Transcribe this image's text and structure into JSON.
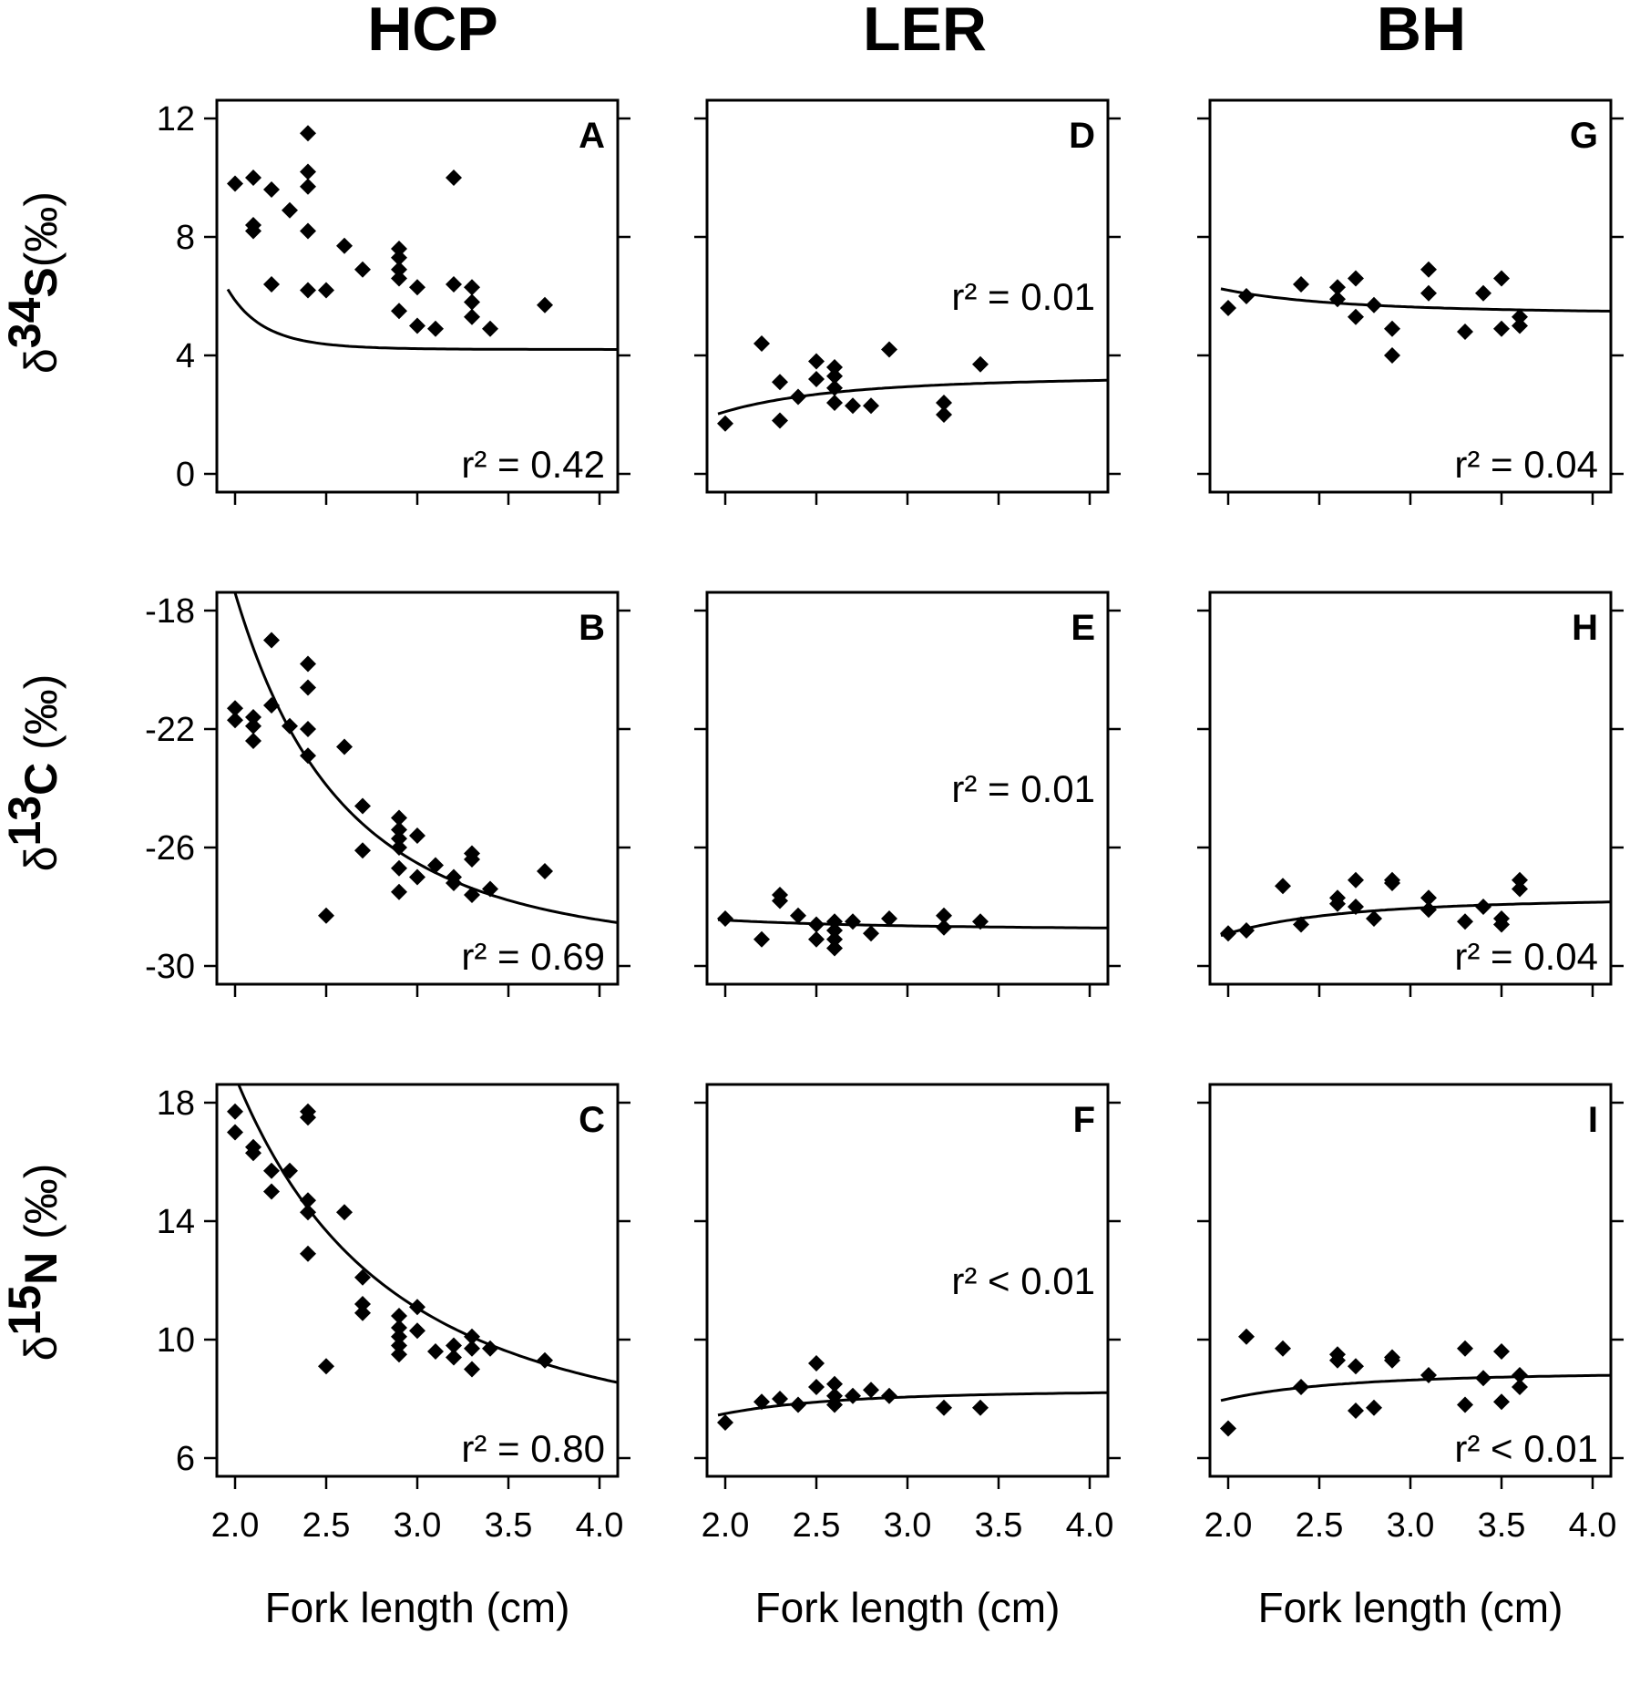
{
  "columns": [
    "HCP",
    "LER",
    "BH"
  ],
  "row_labels": [
    {
      "delta": "δ",
      "sup": "34",
      "elem": "S",
      "unit": "(‰)"
    },
    {
      "delta": "δ",
      "sup": "13",
      "elem": "C",
      "unit": " (‰)"
    },
    {
      "delta": "δ",
      "sup": "15",
      "elem": "N",
      "unit": " (‰)"
    }
  ],
  "chart_data": [
    {
      "type": "scatter",
      "panel": "A",
      "r2": "r² = 0.42",
      "ylim": [
        0,
        12
      ],
      "xlim": [
        2.0,
        4.0
      ],
      "yticks": [
        "0",
        "4",
        "8",
        "12"
      ],
      "xticks": [
        "2.0",
        "2.5",
        "3.0",
        "3.5",
        "4.0"
      ],
      "xlabel": "Fork length (cm)",
      "points": [
        [
          2.0,
          9.8
        ],
        [
          2.1,
          10.0
        ],
        [
          2.1,
          8.2
        ],
        [
          2.1,
          8.4
        ],
        [
          2.2,
          9.6
        ],
        [
          2.2,
          6.4
        ],
        [
          2.3,
          8.9
        ],
        [
          2.4,
          11.5
        ],
        [
          2.4,
          10.2
        ],
        [
          2.4,
          9.7
        ],
        [
          2.4,
          8.2
        ],
        [
          2.4,
          6.2
        ],
        [
          2.5,
          6.2
        ],
        [
          2.6,
          7.7
        ],
        [
          2.7,
          6.9
        ],
        [
          2.9,
          7.6
        ],
        [
          2.9,
          7.3
        ],
        [
          2.9,
          6.9
        ],
        [
          2.9,
          6.6
        ],
        [
          2.9,
          5.5
        ],
        [
          3.0,
          6.3
        ],
        [
          3.0,
          5.0
        ],
        [
          3.1,
          4.9
        ],
        [
          3.2,
          10.0
        ],
        [
          3.2,
          6.4
        ],
        [
          3.3,
          6.3
        ],
        [
          3.3,
          5.8
        ],
        [
          3.3,
          5.3
        ],
        [
          3.4,
          4.9
        ],
        [
          3.7,
          5.7
        ]
      ],
      "fit": {
        "a": 4.2,
        "b": 1.66,
        "n": 10
      }
    },
    {
      "type": "scatter",
      "panel": "B",
      "r2": "r² = 0.69",
      "ylim": [
        -30,
        -18
      ],
      "xlim": [
        2.0,
        4.0
      ],
      "yticks": [
        "-30",
        "-26",
        "-22",
        "-18"
      ],
      "xticks": [
        "2.0",
        "2.5",
        "3.0",
        "3.5",
        "4.0"
      ],
      "xlabel": "Fork length (cm)",
      "points": [
        [
          2.0,
          -21.3
        ],
        [
          2.0,
          -21.7
        ],
        [
          2.1,
          -21.6
        ],
        [
          2.1,
          -21.9
        ],
        [
          2.1,
          -22.4
        ],
        [
          2.2,
          -19.0
        ],
        [
          2.2,
          -21.2
        ],
        [
          2.3,
          -21.9
        ],
        [
          2.4,
          -19.8
        ],
        [
          2.4,
          -20.6
        ],
        [
          2.4,
          -22.0
        ],
        [
          2.4,
          -22.9
        ],
        [
          2.5,
          -28.3
        ],
        [
          2.6,
          -22.6
        ],
        [
          2.7,
          -24.6
        ],
        [
          2.7,
          -26.1
        ],
        [
          2.9,
          -25.0
        ],
        [
          2.9,
          -25.4
        ],
        [
          2.9,
          -25.7
        ],
        [
          2.9,
          -26.0
        ],
        [
          2.9,
          -26.7
        ],
        [
          2.9,
          -27.5
        ],
        [
          3.0,
          -25.6
        ],
        [
          3.0,
          -27.0
        ],
        [
          3.1,
          -26.6
        ],
        [
          3.2,
          -27.0
        ],
        [
          3.2,
          -27.2
        ],
        [
          3.3,
          -26.2
        ],
        [
          3.3,
          -26.4
        ],
        [
          3.3,
          -27.6
        ],
        [
          3.4,
          -27.4
        ],
        [
          3.7,
          -26.8
        ]
      ],
      "fit": {
        "a": -29.6,
        "b": 12.2,
        "n": 3.4
      }
    },
    {
      "type": "scatter",
      "panel": "C",
      "r2": "r² = 0.80",
      "ylim": [
        6,
        18
      ],
      "xlim": [
        2.0,
        4.0
      ],
      "yticks": [
        "6",
        "10",
        "14",
        "18"
      ],
      "xticks": [
        "2.0",
        "2.5",
        "3.0",
        "3.5",
        "4.0"
      ],
      "xlabel": "Fork length (cm)",
      "points": [
        [
          2.0,
          17.7
        ],
        [
          2.0,
          17.0
        ],
        [
          2.1,
          16.5
        ],
        [
          2.1,
          16.3
        ],
        [
          2.2,
          15.7
        ],
        [
          2.2,
          15.0
        ],
        [
          2.3,
          15.7
        ],
        [
          2.4,
          17.7
        ],
        [
          2.4,
          17.5
        ],
        [
          2.4,
          14.7
        ],
        [
          2.4,
          14.3
        ],
        [
          2.4,
          12.9
        ],
        [
          2.5,
          9.1
        ],
        [
          2.6,
          14.3
        ],
        [
          2.7,
          12.1
        ],
        [
          2.7,
          11.2
        ],
        [
          2.7,
          10.9
        ],
        [
          2.9,
          10.8
        ],
        [
          2.9,
          10.4
        ],
        [
          2.9,
          10.1
        ],
        [
          2.9,
          9.8
        ],
        [
          2.9,
          9.5
        ],
        [
          3.0,
          11.1
        ],
        [
          3.0,
          10.3
        ],
        [
          3.1,
          9.6
        ],
        [
          3.2,
          9.8
        ],
        [
          3.2,
          9.4
        ],
        [
          3.3,
          10.1
        ],
        [
          3.3,
          9.7
        ],
        [
          3.3,
          9.0
        ],
        [
          3.4,
          9.7
        ],
        [
          3.7,
          9.3
        ]
      ],
      "fit": {
        "a": 6.3,
        "b": 12.6,
        "n": 2.4
      }
    },
    {
      "type": "scatter",
      "panel": "D",
      "r2": "r² = 0.01",
      "ylim": [
        0,
        12
      ],
      "xlim": [
        2.0,
        4.0
      ],
      "yticks": [
        "0",
        "4",
        "8",
        "12"
      ],
      "xticks": [
        "2.0",
        "2.5",
        "3.0",
        "3.5",
        "4.0"
      ],
      "xlabel": "Fork length (cm)",
      "points": [
        [
          2.0,
          1.7
        ],
        [
          2.2,
          4.4
        ],
        [
          2.3,
          3.1
        ],
        [
          2.3,
          1.8
        ],
        [
          2.4,
          2.6
        ],
        [
          2.5,
          3.8
        ],
        [
          2.5,
          3.2
        ],
        [
          2.6,
          3.6
        ],
        [
          2.6,
          3.3
        ],
        [
          2.6,
          2.9
        ],
        [
          2.6,
          2.4
        ],
        [
          2.7,
          2.3
        ],
        [
          2.8,
          2.3
        ],
        [
          2.9,
          4.2
        ],
        [
          3.2,
          2.4
        ],
        [
          3.2,
          2.0
        ],
        [
          3.4,
          3.7
        ]
      ],
      "fit": {
        "a": 3.3,
        "b": -1.2,
        "n": 3
      }
    },
    {
      "type": "scatter",
      "panel": "E",
      "r2": "r² = 0.01",
      "ylim": [
        -30,
        -18
      ],
      "xlim": [
        2.0,
        4.0
      ],
      "yticks": [
        "-30",
        "-26",
        "-22",
        "-18"
      ],
      "xticks": [
        "2.0",
        "2.5",
        "3.0",
        "3.5",
        "4.0"
      ],
      "xlabel": "Fork length (cm)",
      "points": [
        [
          2.0,
          -28.4
        ],
        [
          2.2,
          -29.1
        ],
        [
          2.3,
          -27.6
        ],
        [
          2.3,
          -27.8
        ],
        [
          2.4,
          -28.3
        ],
        [
          2.5,
          -28.6
        ],
        [
          2.5,
          -29.1
        ],
        [
          2.6,
          -28.5
        ],
        [
          2.6,
          -28.8
        ],
        [
          2.6,
          -29.1
        ],
        [
          2.6,
          -29.4
        ],
        [
          2.7,
          -28.5
        ],
        [
          2.8,
          -28.9
        ],
        [
          2.9,
          -28.4
        ],
        [
          3.2,
          -28.3
        ],
        [
          3.2,
          -28.7
        ],
        [
          3.4,
          -28.5
        ]
      ],
      "fit": {
        "a": -28.8,
        "b": 0.35,
        "n": 2
      }
    },
    {
      "type": "scatter",
      "panel": "F",
      "r2": "r² < 0.01",
      "ylim": [
        6,
        18
      ],
      "xlim": [
        2.0,
        4.0
      ],
      "yticks": [
        "6",
        "10",
        "14",
        "18"
      ],
      "xticks": [
        "2.0",
        "2.5",
        "3.0",
        "3.5",
        "4.0"
      ],
      "xlabel": "Fork length (cm)",
      "points": [
        [
          2.0,
          7.2
        ],
        [
          2.2,
          7.9
        ],
        [
          2.3,
          8.0
        ],
        [
          2.4,
          7.8
        ],
        [
          2.5,
          9.2
        ],
        [
          2.5,
          8.4
        ],
        [
          2.6,
          8.5
        ],
        [
          2.6,
          8.1
        ],
        [
          2.6,
          7.8
        ],
        [
          2.7,
          8.1
        ],
        [
          2.8,
          8.3
        ],
        [
          2.9,
          8.1
        ],
        [
          3.2,
          7.7
        ],
        [
          3.4,
          7.7
        ]
      ],
      "fit": {
        "a": 8.3,
        "b": -0.8,
        "n": 3
      }
    },
    {
      "type": "scatter",
      "panel": "G",
      "r2": "r² = 0.04",
      "ylim": [
        0,
        12
      ],
      "xlim": [
        2.0,
        4.0
      ],
      "yticks": [
        "0",
        "4",
        "8",
        "12"
      ],
      "xticks": [
        "2.0",
        "2.5",
        "3.0",
        "3.5",
        "4.0"
      ],
      "xlabel": "Fork length (cm)",
      "points": [
        [
          2.0,
          5.6
        ],
        [
          2.1,
          6.0
        ],
        [
          2.4,
          6.4
        ],
        [
          2.6,
          6.3
        ],
        [
          2.6,
          5.9
        ],
        [
          2.7,
          6.6
        ],
        [
          2.7,
          5.3
        ],
        [
          2.8,
          5.7
        ],
        [
          2.9,
          4.9
        ],
        [
          2.9,
          4.0
        ],
        [
          3.1,
          6.9
        ],
        [
          3.1,
          6.1
        ],
        [
          3.3,
          4.8
        ],
        [
          3.4,
          6.1
        ],
        [
          3.5,
          6.6
        ],
        [
          3.5,
          4.9
        ],
        [
          3.6,
          5.0
        ],
        [
          3.6,
          5.3
        ]
      ],
      "fit": {
        "a": 5.4,
        "b": 0.8,
        "n": 3
      }
    },
    {
      "type": "scatter",
      "panel": "H",
      "r2": "r² = 0.04",
      "ylim": [
        -30,
        -18
      ],
      "xlim": [
        2.0,
        4.0
      ],
      "yticks": [
        "-30",
        "-26",
        "-22",
        "-18"
      ],
      "xticks": [
        "2.0",
        "2.5",
        "3.0",
        "3.5",
        "4.0"
      ],
      "xlabel": "Fork length (cm)",
      "points": [
        [
          2.0,
          -28.9
        ],
        [
          2.1,
          -28.8
        ],
        [
          2.3,
          -27.3
        ],
        [
          2.4,
          -28.6
        ],
        [
          2.6,
          -27.7
        ],
        [
          2.6,
          -27.9
        ],
        [
          2.7,
          -27.1
        ],
        [
          2.7,
          -28.0
        ],
        [
          2.8,
          -28.4
        ],
        [
          2.9,
          -27.1
        ],
        [
          2.9,
          -27.2
        ],
        [
          3.1,
          -27.7
        ],
        [
          3.1,
          -28.1
        ],
        [
          3.3,
          -28.5
        ],
        [
          3.4,
          -28.0
        ],
        [
          3.5,
          -28.4
        ],
        [
          3.5,
          -28.6
        ],
        [
          3.6,
          -27.1
        ],
        [
          3.6,
          -27.4
        ]
      ],
      "fit": {
        "a": -27.7,
        "b": -1.2,
        "n": 3
      }
    },
    {
      "type": "scatter",
      "panel": "I",
      "r2": "r² < 0.01",
      "ylim": [
        6,
        18
      ],
      "xlim": [
        2.0,
        4.0
      ],
      "yticks": [
        "6",
        "10",
        "14",
        "18"
      ],
      "xticks": [
        "2.0",
        "2.5",
        "3.0",
        "3.5",
        "4.0"
      ],
      "xlabel": "Fork length (cm)",
      "points": [
        [
          2.0,
          7.0
        ],
        [
          2.1,
          10.1
        ],
        [
          2.3,
          9.7
        ],
        [
          2.4,
          8.4
        ],
        [
          2.6,
          9.5
        ],
        [
          2.6,
          9.3
        ],
        [
          2.7,
          9.1
        ],
        [
          2.7,
          7.6
        ],
        [
          2.8,
          7.7
        ],
        [
          2.9,
          9.4
        ],
        [
          2.9,
          9.3
        ],
        [
          3.1,
          8.8
        ],
        [
          3.3,
          9.7
        ],
        [
          3.3,
          7.8
        ],
        [
          3.4,
          8.7
        ],
        [
          3.5,
          9.6
        ],
        [
          3.5,
          7.9
        ],
        [
          3.6,
          8.8
        ],
        [
          3.6,
          8.4
        ]
      ],
      "fit": {
        "a": 8.9,
        "b": -0.9,
        "n": 3
      }
    }
  ]
}
